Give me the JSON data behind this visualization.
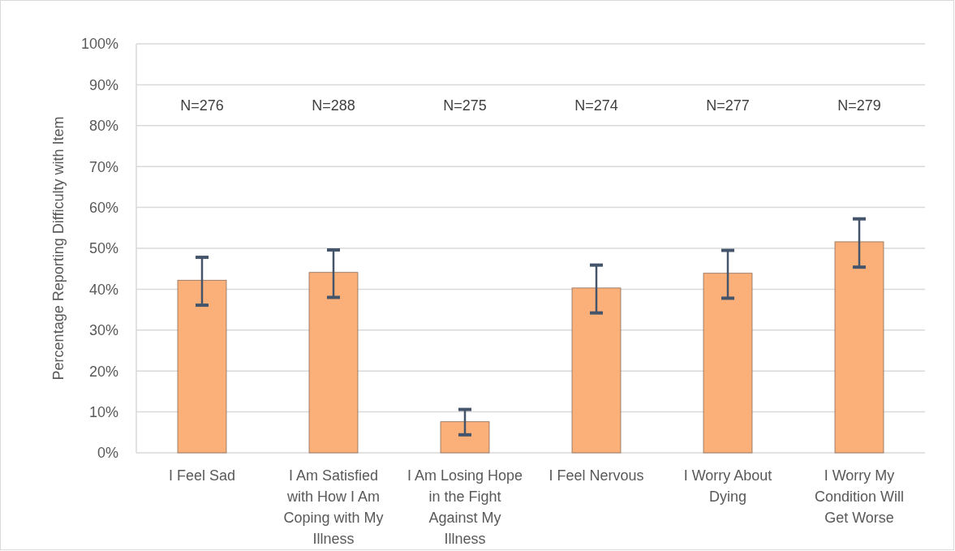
{
  "chart_data": {
    "type": "bar",
    "ylabel": "Percentage Reporting Difficulty with Item",
    "categories": [
      "I Feel Sad",
      "I Am Satisfied with How I Am Coping with My Illness",
      "I Am Losing Hope in the Fight Against My Illness",
      "I Feel Nervous",
      "I Worry About Dying",
      "I Worry My Condition Will Get Worse"
    ],
    "values": [
      42.2,
      44.1,
      7.6,
      40.3,
      43.9,
      51.6
    ],
    "errors": [
      [
        36.1,
        47.8
      ],
      [
        38.0,
        49.6
      ],
      [
        4.4,
        10.6
      ],
      [
        34.2,
        45.9
      ],
      [
        37.8,
        49.5
      ],
      [
        45.4,
        57.2
      ]
    ],
    "color": "#fbb07a",
    "ylim": [
      0,
      100
    ],
    "yticks": [
      {
        "value": 0,
        "label": "0%"
      },
      {
        "value": 10,
        "label": "10%"
      },
      {
        "value": 20,
        "label": "20%"
      },
      {
        "value": 30,
        "label": "30%"
      },
      {
        "value": 40,
        "label": "40%"
      },
      {
        "value": 50,
        "label": "50%"
      },
      {
        "value": 60,
        "label": "60%"
      },
      {
        "value": 70,
        "label": "70%"
      },
      {
        "value": 80,
        "label": "80%"
      },
      {
        "value": 90,
        "label": "90%"
      },
      {
        "value": 100,
        "label": "100%"
      }
    ],
    "grid": "y",
    "annotations": [
      "N=276",
      "N=288",
      "N=275",
      "N=274",
      "N=277",
      "N=279"
    ]
  }
}
